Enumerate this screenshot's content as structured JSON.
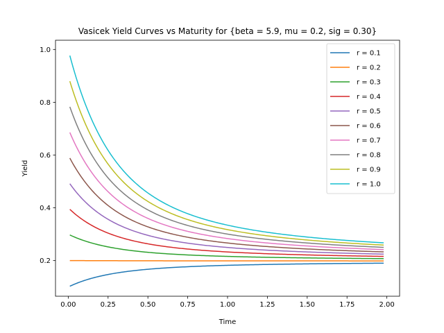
{
  "chart_data": {
    "type": "line",
    "title": "Vasicek Yield Curves vs Maturity for {beta = 5.9, mu = 0.2, sig = 0.30}",
    "xlabel": "Time",
    "ylabel": "Yield",
    "xlim": [
      -0.08,
      2.08
    ],
    "ylim": [
      0.065,
      1.035
    ],
    "xticks": [
      0.0,
      0.25,
      0.5,
      0.75,
      1.0,
      1.25,
      1.5,
      1.75,
      2.0
    ],
    "xtick_labels": [
      "0.00",
      "0.25",
      "0.50",
      "0.75",
      "1.00",
      "1.25",
      "1.50",
      "1.75",
      "2.00"
    ],
    "yticks": [
      0.2,
      0.4,
      0.6,
      0.8,
      1.0
    ],
    "ytick_labels": [
      "0.2",
      "0.4",
      "0.6",
      "0.8",
      "1.0"
    ],
    "grid": false,
    "legend_position": "top-right",
    "model": {
      "beta": 5.9,
      "mu": 0.2,
      "sigma": 0.3,
      "t_start": 0.01,
      "t_end": 1.98
    },
    "series": [
      {
        "name": "r = 0.1",
        "r0": 0.1,
        "color": "#1f77b4"
      },
      {
        "name": "r = 0.2",
        "r0": 0.2,
        "color": "#ff7f0e"
      },
      {
        "name": "r = 0.3",
        "r0": 0.3,
        "color": "#2ca02c"
      },
      {
        "name": "r = 0.4",
        "r0": 0.4,
        "color": "#d62728"
      },
      {
        "name": "r = 0.5",
        "r0": 0.5,
        "color": "#9467bd"
      },
      {
        "name": "r = 0.6",
        "r0": 0.6,
        "color": "#8c564b"
      },
      {
        "name": "r = 0.7",
        "r0": 0.7,
        "color": "#e377c2"
      },
      {
        "name": "r = 0.8",
        "r0": 0.8,
        "color": "#7f7f7f"
      },
      {
        "name": "r = 0.9",
        "r0": 0.9,
        "color": "#bcbd22"
      },
      {
        "name": "r = 1.0",
        "r0": 1.0,
        "color": "#17becf"
      }
    ]
  }
}
